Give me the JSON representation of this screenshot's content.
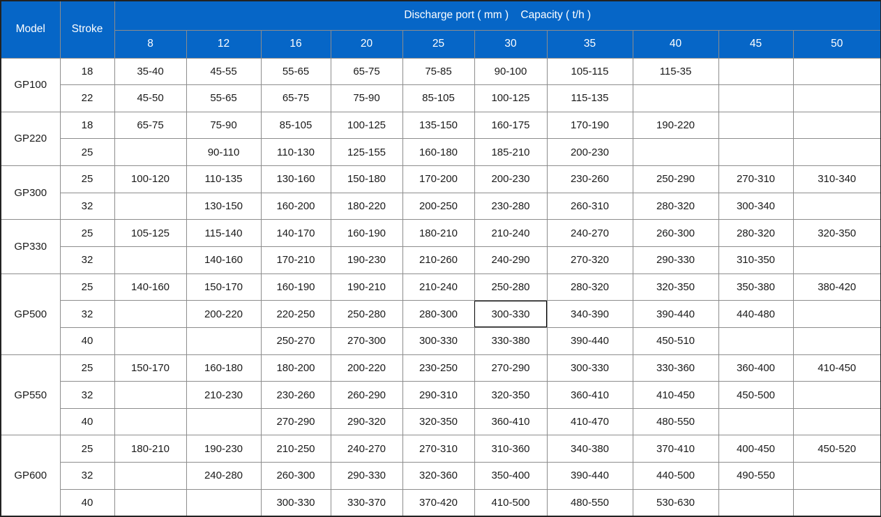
{
  "colors": {
    "header_bg": "#0666C7",
    "header_text": "#FFFFFF",
    "grid_line": "#8C8C8C",
    "frame_line": "#222222",
    "body_text": "#1A1A1A",
    "selection_line": "#000000"
  },
  "chart_data": {
    "type": "table",
    "header": {
      "model_label": "Model",
      "stroke_label": "Stroke",
      "span_label": "Discharge port ( mm )    Capacity ( t/h )",
      "discharge_ports": [
        "8",
        "12",
        "16",
        "20",
        "25",
        "30",
        "35",
        "40",
        "45",
        "50"
      ]
    },
    "groups": [
      {
        "model": "GP100",
        "rows": [
          {
            "stroke": "18",
            "values": [
              "35-40",
              "45-55",
              "55-65",
              "65-75",
              "75-85",
              "90-100",
              "105-115",
              "115-35",
              "",
              ""
            ]
          },
          {
            "stroke": "22",
            "values": [
              "45-50",
              "55-65",
              "65-75",
              "75-90",
              "85-105",
              "100-125",
              "115-135",
              "",
              "",
              ""
            ]
          }
        ]
      },
      {
        "model": "GP220",
        "rows": [
          {
            "stroke": "18",
            "values": [
              "65-75",
              "75-90",
              "85-105",
              "100-125",
              "135-150",
              "160-175",
              "170-190",
              "190-220",
              "",
              ""
            ]
          },
          {
            "stroke": "25",
            "values": [
              "",
              "90-110",
              "110-130",
              "125-155",
              "160-180",
              "185-210",
              "200-230",
              "",
              "",
              ""
            ]
          }
        ]
      },
      {
        "model": "GP300",
        "rows": [
          {
            "stroke": "25",
            "values": [
              "100-120",
              "110-135",
              "130-160",
              "150-180",
              "170-200",
              "200-230",
              "230-260",
              "250-290",
              "270-310",
              "310-340"
            ]
          },
          {
            "stroke": "32",
            "values": [
              "",
              "130-150",
              "160-200",
              "180-220",
              "200-250",
              "230-280",
              "260-310",
              "280-320",
              "300-340",
              ""
            ]
          }
        ]
      },
      {
        "model": "GP330",
        "rows": [
          {
            "stroke": "25",
            "values": [
              "105-125",
              "115-140",
              "140-170",
              "160-190",
              "180-210",
              "210-240",
              "240-270",
              "260-300",
              "280-320",
              "320-350"
            ]
          },
          {
            "stroke": "32",
            "values": [
              "",
              "140-160",
              "170-210",
              "190-230",
              "210-260",
              "240-290",
              "270-320",
              "290-330",
              "310-350",
              ""
            ]
          }
        ]
      },
      {
        "model": "GP500",
        "rows": [
          {
            "stroke": "25",
            "values": [
              "140-160",
              "150-170",
              "160-190",
              "190-210",
              "210-240",
              "250-280",
              "280-320",
              "320-350",
              "350-380",
              "380-420"
            ]
          },
          {
            "stroke": "32",
            "values": [
              "",
              "200-220",
              "220-250",
              "250-280",
              "280-300",
              "300-330",
              "340-390",
              "390-440",
              "440-480",
              ""
            ]
          },
          {
            "stroke": "40",
            "values": [
              "",
              "",
              "250-270",
              "270-300",
              "300-330",
              "330-380",
              "390-440",
              "450-510",
              "",
              ""
            ]
          }
        ]
      },
      {
        "model": "GP550",
        "rows": [
          {
            "stroke": "25",
            "values": [
              "150-170",
              "160-180",
              "180-200",
              "200-220",
              "230-250",
              "270-290",
              "300-330",
              "330-360",
              "360-400",
              "410-450"
            ]
          },
          {
            "stroke": "32",
            "values": [
              "",
              "210-230",
              "230-260",
              "260-290",
              "290-310",
              "320-350",
              "360-410",
              "410-450",
              "450-500",
              ""
            ]
          },
          {
            "stroke": "40",
            "values": [
              "",
              "",
              "270-290",
              "290-320",
              "320-350",
              "360-410",
              "410-470",
              "480-550",
              "",
              ""
            ]
          }
        ]
      },
      {
        "model": "GP600",
        "rows": [
          {
            "stroke": "25",
            "values": [
              "180-210",
              "190-230",
              "210-250",
              "240-270",
              "270-310",
              "310-360",
              "340-380",
              "370-410",
              "400-450",
              "450-520"
            ]
          },
          {
            "stroke": "32",
            "values": [
              "",
              "240-280",
              "260-300",
              "290-330",
              "320-360",
              "350-400",
              "390-440",
              "440-500",
              "490-550",
              ""
            ]
          },
          {
            "stroke": "40",
            "values": [
              "",
              "",
              "300-330",
              "330-370",
              "370-420",
              "410-500",
              "480-550",
              "530-630",
              "",
              ""
            ]
          }
        ]
      }
    ],
    "selected_cell": {
      "group_index": 4,
      "row_index": 1,
      "col_index": 5,
      "value": "300-330"
    }
  }
}
